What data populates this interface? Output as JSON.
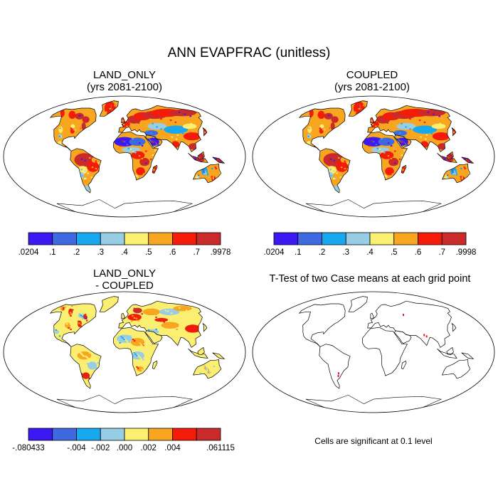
{
  "title": "ANN EVAPFRAC (unitless)",
  "panels": [
    {
      "id": "land_only",
      "title_line1": "LAND_ONLY",
      "title_line2": "(yrs 2081-2100)",
      "colorbar": {
        "colors": [
          "#3a19f2",
          "#3f69e0",
          "#18a8ef",
          "#98cde6",
          "#fbef71",
          "#f8a520",
          "#f41b09",
          "#cb2a2a"
        ],
        "ticks": [
          ".0204",
          ".1",
          ".2",
          ".3",
          ".4",
          ".5",
          ".6",
          ".7",
          ".9978"
        ]
      }
    },
    {
      "id": "coupled",
      "title_line1": "COUPLED",
      "title_line2": "(yrs 2081-2100)",
      "colorbar": {
        "colors": [
          "#3a19f2",
          "#3f69e0",
          "#18a8ef",
          "#98cde6",
          "#fbef71",
          "#f8a520",
          "#f41b09",
          "#cb2a2a"
        ],
        "ticks": [
          ".0204",
          ".1",
          ".2",
          ".3",
          ".4",
          ".5",
          ".6",
          ".7",
          ".9998"
        ]
      }
    },
    {
      "id": "difference",
      "title_line1": "LAND_ONLY",
      "title_line2": "- COUPLED",
      "colorbar": {
        "colors": [
          "#3a19f2",
          "#3f69e0",
          "#18a8ef",
          "#98cde6",
          "#fbef71",
          "#f8a520",
          "#f41b09",
          "#cb2a2a"
        ],
        "ticks": [
          "-.080433",
          "",
          "-.004",
          "-.002",
          ".000",
          ".002",
          ".004",
          "",
          ".061115"
        ]
      }
    },
    {
      "id": "ttest",
      "title_line1": "T-Test of two Case means at each grid point",
      "note": "Cells are significant at 0.1 level"
    }
  ]
}
